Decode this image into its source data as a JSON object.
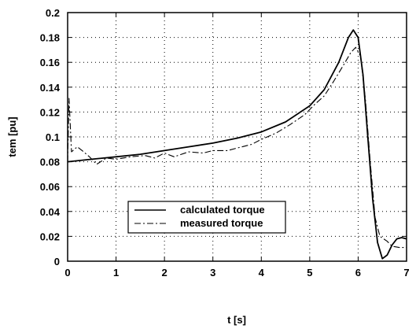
{
  "chart_data": {
    "type": "line",
    "title": "",
    "xlabel": "t [s]",
    "ylabel": "tem [pu]",
    "xlim": [
      0,
      7
    ],
    "ylim": [
      0,
      0.2
    ],
    "x_ticks": [
      "0",
      "1",
      "2",
      "3",
      "4",
      "5",
      "6",
      "7"
    ],
    "y_ticks": [
      "0",
      "0.02",
      "0.04",
      "0.06",
      "0.08",
      "0.1",
      "0.12",
      "0.14",
      "0.16",
      "0.18",
      "0.2"
    ],
    "grid": true,
    "legend_position": "lower-left",
    "series": [
      {
        "name": "calculated torque",
        "style": "solid",
        "points": [
          [
            0,
            0.08
          ],
          [
            0.5,
            0.082
          ],
          [
            1,
            0.084
          ],
          [
            1.5,
            0.086
          ],
          [
            2,
            0.089
          ],
          [
            2.5,
            0.092
          ],
          [
            3,
            0.095
          ],
          [
            3.5,
            0.099
          ],
          [
            4,
            0.104
          ],
          [
            4.5,
            0.112
          ],
          [
            5,
            0.125
          ],
          [
            5.3,
            0.138
          ],
          [
            5.6,
            0.16
          ],
          [
            5.8,
            0.18
          ],
          [
            5.9,
            0.186
          ],
          [
            6.0,
            0.18
          ],
          [
            6.1,
            0.15
          ],
          [
            6.2,
            0.1
          ],
          [
            6.3,
            0.05
          ],
          [
            6.4,
            0.015
          ],
          [
            6.5,
            0.002
          ],
          [
            6.6,
            0.005
          ],
          [
            6.7,
            0.013
          ],
          [
            6.8,
            0.018
          ],
          [
            6.9,
            0.019
          ],
          [
            7.0,
            0.018
          ]
        ]
      },
      {
        "name": "measured torque",
        "style": "dash-dot",
        "points": [
          [
            0,
            0.08
          ],
          [
            0.03,
            0.131
          ],
          [
            0.08,
            0.088
          ],
          [
            0.2,
            0.092
          ],
          [
            0.3,
            0.089
          ],
          [
            0.45,
            0.084
          ],
          [
            0.6,
            0.078
          ],
          [
            0.8,
            0.083
          ],
          [
            1.0,
            0.082
          ],
          [
            1.3,
            0.084
          ],
          [
            1.6,
            0.085
          ],
          [
            1.8,
            0.083
          ],
          [
            2.0,
            0.087
          ],
          [
            2.2,
            0.084
          ],
          [
            2.5,
            0.088
          ],
          [
            2.8,
            0.087
          ],
          [
            3.0,
            0.089
          ],
          [
            3.3,
            0.089
          ],
          [
            3.5,
            0.091
          ],
          [
            3.8,
            0.094
          ],
          [
            4.0,
            0.098
          ],
          [
            4.3,
            0.103
          ],
          [
            4.6,
            0.11
          ],
          [
            4.9,
            0.118
          ],
          [
            5.1,
            0.126
          ],
          [
            5.3,
            0.133
          ],
          [
            5.5,
            0.145
          ],
          [
            5.7,
            0.158
          ],
          [
            5.85,
            0.168
          ],
          [
            5.95,
            0.172
          ],
          [
            6.05,
            0.165
          ],
          [
            6.15,
            0.13
          ],
          [
            6.25,
            0.08
          ],
          [
            6.35,
            0.035
          ],
          [
            6.45,
            0.02
          ],
          [
            6.6,
            0.016
          ],
          [
            6.7,
            0.012
          ],
          [
            6.85,
            0.011
          ],
          [
            7.0,
            0.011
          ]
        ]
      }
    ]
  }
}
